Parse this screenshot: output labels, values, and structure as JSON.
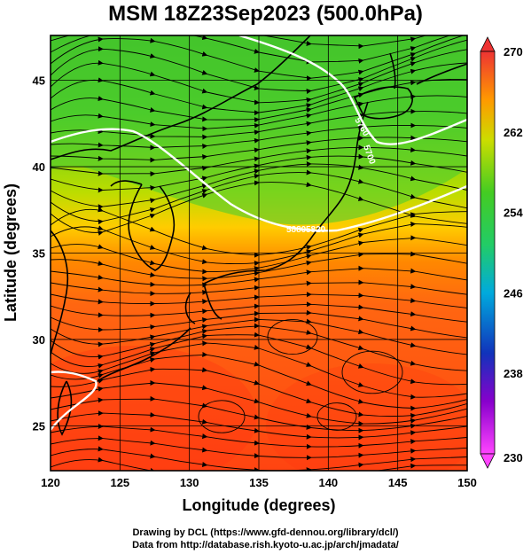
{
  "title": "MSM 18Z23Sep2023 (500.0hPa)",
  "map": {
    "xlabel": "Longitude (degrees)",
    "ylabel": "Latitude  (degrees)",
    "x_ticks": [
      "120",
      "125",
      "130",
      "135",
      "140",
      "145",
      "150"
    ],
    "y_ticks": [
      "25",
      "30",
      "35",
      "40",
      "45"
    ],
    "xlim": [
      120,
      150
    ],
    "ylim": [
      22.4,
      47.6
    ],
    "field": "temperature",
    "overlay": "wind streamlines with arrows",
    "contour_labels": [
      "5760",
      "5700",
      "5880",
      "5820"
    ]
  },
  "colorbar": {
    "min": 230,
    "max": 270,
    "tick_labels": [
      "270",
      "262",
      "254",
      "246",
      "238",
      "230"
    ],
    "colors": {
      "230": "#ff44ff",
      "236": "#8800cc",
      "240": "#1133bb",
      "246": "#00aadd",
      "251": "#22cc66",
      "256": "#44cc22",
      "261": "#ccdd00",
      "265": "#ff9900",
      "270": "#ee3333"
    }
  },
  "footer": {
    "line1": "Drawing by DCL (https://www.gfd-dennou.org/library/dcl/)",
    "line2": "Data from http://database.rish.kyoto-u.ac.jp/arch/jmadata/"
  }
}
